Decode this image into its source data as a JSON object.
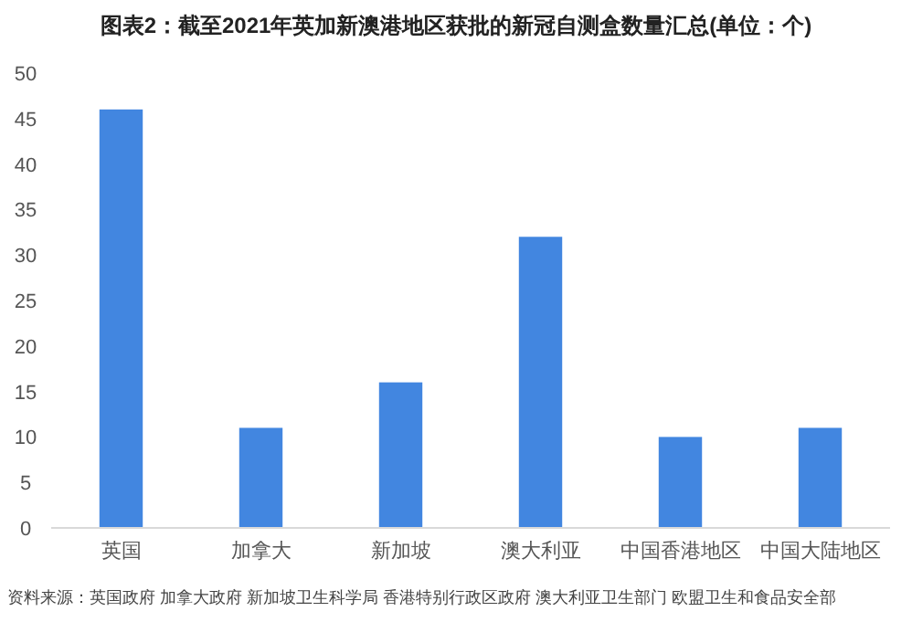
{
  "chart_data": {
    "type": "bar",
    "title": "图表2：截至2021年英加新澳港地区获批的新冠自测盒数量汇总(单位：个)",
    "categories": [
      "英国",
      "加拿大",
      "新加坡",
      "澳大利亚",
      "中国香港地区",
      "中国大陆地区"
    ],
    "values": [
      46,
      11,
      16,
      32,
      10,
      11
    ],
    "color": "#4286e0",
    "ylim": [
      0,
      50
    ],
    "yticks": [
      0,
      5,
      10,
      15,
      20,
      25,
      30,
      35,
      40,
      45,
      50
    ],
    "grid": false,
    "annotations": [
      "资料来源：英国政府 加拿大政府 新加坡卫生科学局 香港特别行政区政府 澳大利亚卫生部门 欧盟卫生和食品安全部"
    ]
  }
}
